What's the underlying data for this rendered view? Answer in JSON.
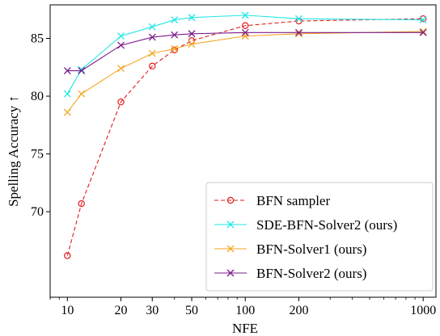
{
  "chart_data": {
    "type": "line",
    "xlabel": "NFE",
    "ylabel": "Spelling Accuracy ↑",
    "xscale": "log",
    "xlim": [
      8,
      1180
    ],
    "ylim": [
      62.6,
      87.9
    ],
    "xticks": [
      10,
      20,
      30,
      50,
      100,
      200,
      1000
    ],
    "yticks": [
      70,
      75,
      80,
      85
    ],
    "grid": false,
    "legend_position": "lower-right",
    "series": [
      {
        "name": "BFN sampler",
        "color": "#e41a1c",
        "linestyle": "dashed",
        "marker": "circle-open",
        "x": [
          10,
          12,
          20,
          30,
          40,
          50,
          100,
          200,
          1000
        ],
        "y": [
          66.2,
          70.7,
          79.5,
          82.6,
          84.0,
          84.8,
          86.1,
          86.5,
          86.7
        ]
      },
      {
        "name": "SDE-BFN-Solver2 (ours)",
        "color": "#22e6e6",
        "linestyle": "solid",
        "marker": "x",
        "x": [
          10,
          12,
          20,
          30,
          40,
          50,
          100,
          200,
          1000
        ],
        "y": [
          80.2,
          82.3,
          85.2,
          86.0,
          86.6,
          86.8,
          87.0,
          86.7,
          86.6
        ]
      },
      {
        "name": "BFN-Solver1 (ours)",
        "color": "#f5a623",
        "linestyle": "solid",
        "marker": "x",
        "x": [
          10,
          12,
          20,
          30,
          40,
          50,
          100,
          200,
          1000
        ],
        "y": [
          78.6,
          80.2,
          82.4,
          83.7,
          84.1,
          84.5,
          85.2,
          85.4,
          85.6
        ]
      },
      {
        "name": "BFN-Solver2 (ours)",
        "color": "#7b1c8c",
        "linestyle": "solid",
        "marker": "x",
        "x": [
          10,
          12,
          20,
          30,
          40,
          50,
          100,
          200,
          1000
        ],
        "y": [
          82.2,
          82.2,
          84.4,
          85.1,
          85.3,
          85.4,
          85.5,
          85.5,
          85.5
        ]
      }
    ]
  }
}
